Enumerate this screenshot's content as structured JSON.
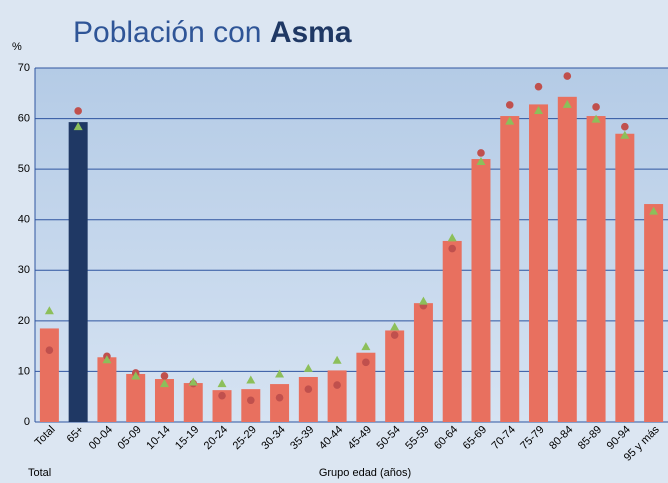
{
  "chart_data": {
    "type": "bar",
    "title": "Población con",
    "title_emphasis": "Asma",
    "y_label": "%",
    "x_label": "Grupo edad (años)",
    "group_label": "Total",
    "categories": [
      "Total",
      "65+",
      "00-04",
      "05-09",
      "10-14",
      "15-19",
      "20-24",
      "25-29",
      "30-34",
      "35-39",
      "40-44",
      "45-49",
      "50-54",
      "55-59",
      "60-64",
      "65-69",
      "70-74",
      "75-79",
      "80-84",
      "85-89",
      "90-94",
      "95 y más"
    ],
    "values": [
      18.5,
      59.3,
      12.8,
      9.5,
      8.5,
      7.7,
      6.3,
      6.5,
      7.5,
      8.9,
      10.2,
      13.7,
      18.1,
      23.5,
      35.8,
      52,
      60.5,
      62.8,
      64.3,
      60.5,
      57,
      43.1
    ],
    "colors": [
      "#e8705f",
      "#1f3864",
      "#e8705f",
      "#e8705f",
      "#e8705f",
      "#e8705f",
      "#e8705f",
      "#e8705f",
      "#e8705f",
      "#e8705f",
      "#e8705f",
      "#e8705f",
      "#e8705f",
      "#e8705f",
      "#e8705f",
      "#e8705f",
      "#e8705f",
      "#e8705f",
      "#e8705f",
      "#e8705f",
      "#e8705f",
      "#e8705f"
    ],
    "series": [
      {
        "marker": "circle",
        "color": "#c0504d",
        "values": [
          14.2,
          61.5,
          13,
          9.7,
          9.1,
          7.6,
          5.2,
          4.3,
          4.8,
          6.5,
          7.3,
          11.8,
          17.2,
          23,
          34.3,
          53.2,
          62.7,
          66.3,
          68.4,
          62.3,
          58.4,
          null
        ]
      },
      {
        "marker": "triangle",
        "color": "#8cbf5a",
        "values": [
          22,
          58.4,
          12.3,
          9.1,
          7.6,
          7.9,
          7.6,
          8.3,
          9.5,
          10.6,
          12.2,
          14.9,
          18.8,
          23.9,
          36.4,
          51.5,
          59.5,
          61.6,
          62.8,
          59.9,
          56.7,
          41.7
        ]
      }
    ],
    "ylim": [
      0,
      70
    ],
    "yticks": [
      0,
      10,
      20,
      30,
      40,
      50,
      60,
      70
    ],
    "grid": true
  }
}
